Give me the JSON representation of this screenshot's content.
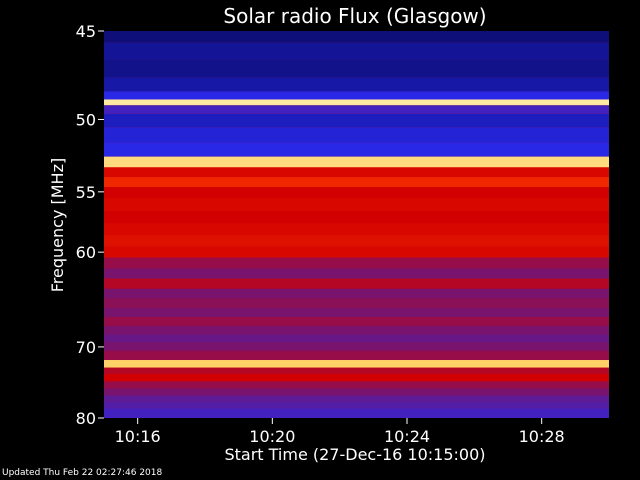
{
  "chart_data": {
    "type": "heatmap",
    "title": "Solar radio Flux (Glasgow)",
    "xlabel": "Start Time (27-Dec-16 10:15:00)",
    "ylabel": "Frequency [MHz]",
    "x_ticks": [
      "10:16",
      "10:20",
      "10:24",
      "10:28"
    ],
    "x_tick_minutes": [
      16,
      20,
      24,
      28
    ],
    "x_range_minutes": [
      15,
      30
    ],
    "y_ticks": [
      45,
      50,
      55,
      60,
      70,
      80
    ],
    "y_range": [
      45,
      80
    ],
    "y_scale": "reciprocal",
    "colormap": "black-blue-red-yellow-white",
    "bands_mhz": [
      {
        "freq": 45.2,
        "level": 0.15
      },
      {
        "freq": 46.0,
        "level": 0.2
      },
      {
        "freq": 47.0,
        "level": 0.18
      },
      {
        "freq": 48.0,
        "level": 0.22
      },
      {
        "freq": 48.6,
        "level": 0.3
      },
      {
        "freq": 48.95,
        "level": 0.95
      },
      {
        "freq": 49.3,
        "level": 0.35
      },
      {
        "freq": 50.0,
        "level": 0.25
      },
      {
        "freq": 51.0,
        "level": 0.28
      },
      {
        "freq": 52.0,
        "level": 0.3
      },
      {
        "freq": 52.9,
        "level": 0.92
      },
      {
        "freq": 53.5,
        "level": 0.62
      },
      {
        "freq": 54.3,
        "level": 0.7
      },
      {
        "freq": 55.0,
        "level": 0.6
      },
      {
        "freq": 56.0,
        "level": 0.62
      },
      {
        "freq": 57.0,
        "level": 0.6
      },
      {
        "freq": 58.0,
        "level": 0.62
      },
      {
        "freq": 59.0,
        "level": 0.64
      },
      {
        "freq": 60.0,
        "level": 0.62
      },
      {
        "freq": 61.0,
        "level": 0.5
      },
      {
        "freq": 62.0,
        "level": 0.45
      },
      {
        "freq": 63.0,
        "level": 0.55
      },
      {
        "freq": 64.0,
        "level": 0.45
      },
      {
        "freq": 65.0,
        "level": 0.48
      },
      {
        "freq": 66.0,
        "level": 0.45
      },
      {
        "freq": 67.0,
        "level": 0.5
      },
      {
        "freq": 68.0,
        "level": 0.45
      },
      {
        "freq": 69.0,
        "level": 0.42
      },
      {
        "freq": 70.0,
        "level": 0.45
      },
      {
        "freq": 71.0,
        "level": 0.5
      },
      {
        "freq": 72.3,
        "level": 0.9
      },
      {
        "freq": 73.0,
        "level": 0.55
      },
      {
        "freq": 74.0,
        "level": 0.6
      },
      {
        "freq": 75.0,
        "level": 0.5
      },
      {
        "freq": 76.0,
        "level": 0.45
      },
      {
        "freq": 77.0,
        "level": 0.4
      },
      {
        "freq": 78.0,
        "level": 0.38
      },
      {
        "freq": 79.0,
        "level": 0.35
      }
    ],
    "colors": {
      "background": "#000000",
      "text": "#ffffff",
      "plot_bg": "#cc0000"
    }
  },
  "footer": {
    "updated": "Updated Thu Feb 22 02:27:46 2018"
  }
}
